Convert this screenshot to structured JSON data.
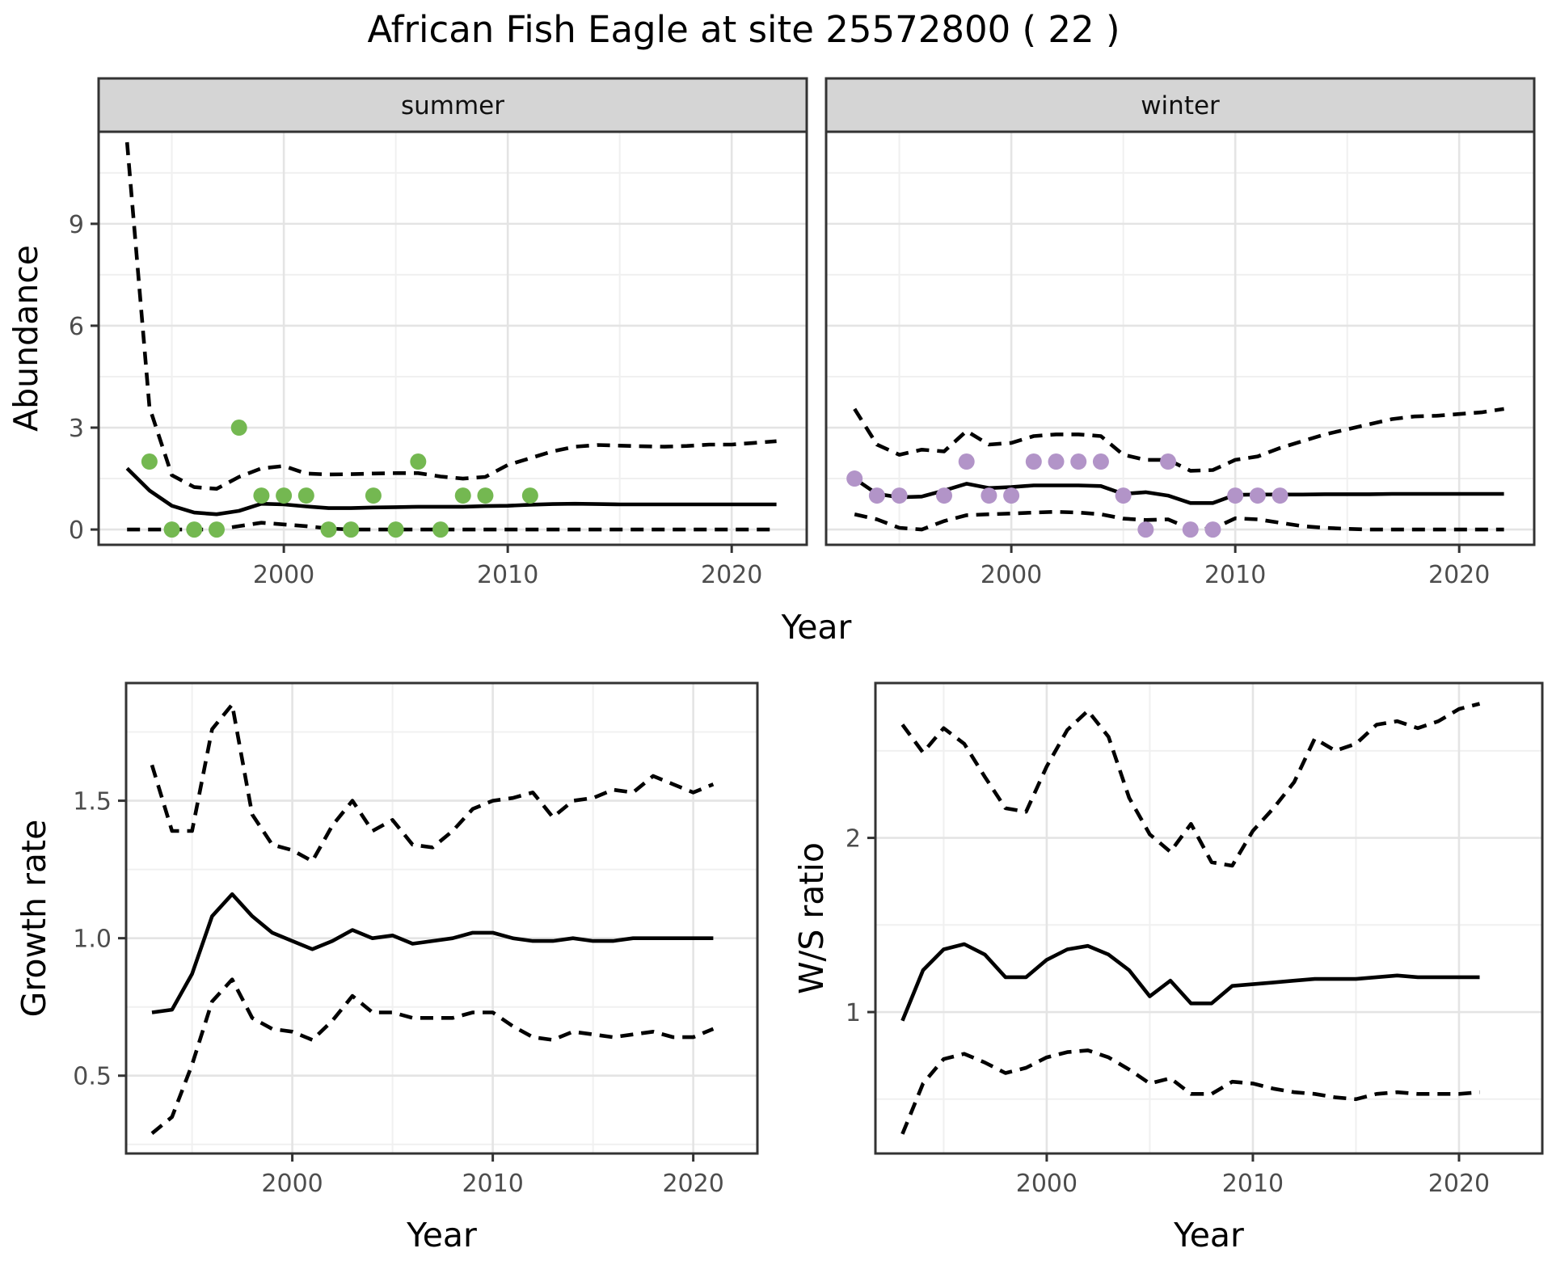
{
  "title": "African Fish Eagle at site 25572800 ( 22 )",
  "colors": {
    "summer_points": "#74B851",
    "winter_points": "#B294C8",
    "line": "#000000",
    "grid_major": "#E4E4E4",
    "grid_minor": "#F0F0F0",
    "panel_border": "#333333",
    "strip_background": "#D5D5D5",
    "strip_text": "#111111",
    "tick_text": "#4D4D4D",
    "axis_title_text": "#000000",
    "background": "#FFFFFF"
  },
  "axis_titles": {
    "abundance": "Abundance",
    "year_top": "Year",
    "growth": "Growth rate",
    "year_growth": "Year",
    "ws": "W/S ratio",
    "year_ws": "Year"
  },
  "chart_data": [
    {
      "panel": "summer",
      "type": "line",
      "strip": "summer",
      "xlabel": "Year",
      "ylabel": "Abundance",
      "grid": true,
      "legend": "none",
      "x_range": [
        1991.73,
        2023.35
      ],
      "y_range": [
        -0.45,
        11.71
      ],
      "x_ticks": [
        2000,
        2010,
        2020
      ],
      "x_tick_labels": [
        "2000",
        "2010",
        "2020"
      ],
      "x_minor": [
        1995,
        2005,
        2015
      ],
      "y_ticks": [
        0,
        3,
        6,
        9
      ],
      "y_tick_labels": [
        "0",
        "3",
        "6",
        "9"
      ],
      "y_minor": [
        1.5,
        4.5,
        7.5,
        10.5
      ],
      "show_y_labels": true,
      "years": [
        1993,
        1994,
        1995,
        1996,
        1997,
        1998,
        1999,
        2000,
        2001,
        2002,
        2003,
        2004,
        2005,
        2006,
        2007,
        2008,
        2009,
        2010,
        2011,
        2012,
        2013,
        2014,
        2015,
        2016,
        2017,
        2018,
        2019,
        2020,
        2021,
        2022
      ],
      "series": [
        {
          "name": "upper_ci",
          "style": "dashed",
          "values": [
            11.4,
            3.6,
            1.6,
            1.25,
            1.2,
            1.55,
            1.8,
            1.87,
            1.65,
            1.62,
            1.63,
            1.65,
            1.66,
            1.66,
            1.56,
            1.5,
            1.55,
            1.9,
            2.1,
            2.3,
            2.44,
            2.49,
            2.47,
            2.45,
            2.44,
            2.46,
            2.5,
            2.5,
            2.55,
            2.6
          ]
        },
        {
          "name": "median",
          "style": "solid",
          "values": [
            1.8,
            1.15,
            0.7,
            0.5,
            0.45,
            0.55,
            0.76,
            0.74,
            0.68,
            0.63,
            0.63,
            0.65,
            0.66,
            0.67,
            0.67,
            0.67,
            0.69,
            0.7,
            0.73,
            0.75,
            0.76,
            0.75,
            0.74,
            0.74,
            0.74,
            0.74,
            0.74,
            0.74,
            0.74,
            0.74
          ]
        },
        {
          "name": "lower_ci",
          "style": "dashed",
          "values": [
            0,
            0,
            0,
            0,
            0,
            0.1,
            0.2,
            0.15,
            0.1,
            0.03,
            0,
            0,
            0,
            0,
            0,
            0,
            0,
            0,
            0,
            0,
            0,
            0,
            0,
            0,
            0,
            0,
            0,
            0,
            0,
            0
          ]
        }
      ],
      "points": {
        "name": "observed_counts",
        "color": "#74B851",
        "data": [
          [
            1994,
            2
          ],
          [
            1995,
            0
          ],
          [
            1996,
            0
          ],
          [
            1997,
            0
          ],
          [
            1998,
            3
          ],
          [
            1999,
            1
          ],
          [
            2000,
            1
          ],
          [
            2001,
            1
          ],
          [
            2002,
            0
          ],
          [
            2003,
            0
          ],
          [
            2004,
            1
          ],
          [
            2005,
            0
          ],
          [
            2006,
            2
          ],
          [
            2007,
            0
          ],
          [
            2008,
            1
          ],
          [
            2009,
            1
          ],
          [
            2011,
            1
          ]
        ]
      }
    },
    {
      "panel": "winter",
      "type": "line",
      "strip": "winter",
      "xlabel": "Year",
      "ylabel": "Abundance",
      "grid": true,
      "legend": "none",
      "x_range": [
        1991.73,
        2023.35
      ],
      "y_range": [
        -0.45,
        11.71
      ],
      "x_ticks": [
        2000,
        2010,
        2020
      ],
      "x_tick_labels": [
        "2000",
        "2010",
        "2020"
      ],
      "x_minor": [
        1995,
        2005,
        2015
      ],
      "y_ticks": [
        0,
        3,
        6,
        9
      ],
      "y_tick_labels": [
        "0",
        "3",
        "6",
        "9"
      ],
      "y_minor": [
        1.5,
        4.5,
        7.5,
        10.5
      ],
      "show_y_labels": false,
      "years": [
        1993,
        1994,
        1995,
        1996,
        1997,
        1998,
        1999,
        2000,
        2001,
        2002,
        2003,
        2004,
        2005,
        2006,
        2007,
        2008,
        2009,
        2010,
        2011,
        2012,
        2013,
        2014,
        2015,
        2016,
        2017,
        2018,
        2019,
        2020,
        2021,
        2022
      ],
      "series": [
        {
          "name": "upper_ci",
          "style": "dashed",
          "values": [
            3.55,
            2.5,
            2.2,
            2.35,
            2.3,
            2.9,
            2.5,
            2.55,
            2.75,
            2.8,
            2.8,
            2.75,
            2.2,
            2.05,
            2.05,
            1.73,
            1.75,
            2.05,
            2.15,
            2.4,
            2.6,
            2.8,
            2.95,
            3.1,
            3.25,
            3.33,
            3.35,
            3.4,
            3.45,
            3.55
          ]
        },
        {
          "name": "median",
          "style": "solid",
          "values": [
            1.5,
            1.05,
            0.95,
            0.97,
            1.15,
            1.35,
            1.22,
            1.25,
            1.3,
            1.3,
            1.3,
            1.28,
            1.05,
            1.1,
            1.0,
            0.78,
            0.78,
            1.02,
            1.03,
            1.03,
            1.03,
            1.04,
            1.04,
            1.04,
            1.05,
            1.05,
            1.05,
            1.05,
            1.05,
            1.05
          ]
        },
        {
          "name": "lower_ci",
          "style": "dashed",
          "values": [
            0.45,
            0.3,
            0.05,
            0,
            0.25,
            0.42,
            0.45,
            0.47,
            0.5,
            0.52,
            0.5,
            0.45,
            0.32,
            0.28,
            0.3,
            0.02,
            0.02,
            0.33,
            0.3,
            0.2,
            0.1,
            0.05,
            0.02,
            0,
            0,
            0,
            0,
            0,
            0,
            0
          ]
        }
      ],
      "points": {
        "name": "observed_counts",
        "color": "#B294C8",
        "data": [
          [
            1993,
            1.5
          ],
          [
            1994,
            1
          ],
          [
            1995,
            1
          ],
          [
            1997,
            1
          ],
          [
            1998,
            2
          ],
          [
            1999,
            1
          ],
          [
            2000,
            1
          ],
          [
            2001,
            2
          ],
          [
            2002,
            2
          ],
          [
            2003,
            2
          ],
          [
            2004,
            2
          ],
          [
            2005,
            1
          ],
          [
            2006,
            0
          ],
          [
            2007,
            2
          ],
          [
            2008,
            0
          ],
          [
            2009,
            0
          ],
          [
            2010,
            1
          ],
          [
            2011,
            1
          ],
          [
            2012,
            1
          ]
        ]
      }
    },
    {
      "panel": "growth",
      "type": "line",
      "strip": null,
      "xlabel": "Year",
      "ylabel": "Growth rate",
      "grid": true,
      "legend": "none",
      "x_range": [
        1991.71,
        2023.2
      ],
      "y_range": [
        0.217,
        1.928
      ],
      "x_ticks": [
        2000,
        2010,
        2020
      ],
      "x_tick_labels": [
        "2000",
        "2010",
        "2020"
      ],
      "x_minor": [
        1995,
        2005,
        2015
      ],
      "y_ticks": [
        0.5,
        1.0,
        1.5
      ],
      "y_tick_labels": [
        "0.5",
        "1.0",
        "1.5"
      ],
      "y_minor": [
        0.25,
        0.75,
        1.25,
        1.75
      ],
      "show_y_labels": true,
      "years": [
        1993,
        1994,
        1995,
        1996,
        1997,
        1998,
        1999,
        2000,
        2001,
        2002,
        2003,
        2004,
        2005,
        2006,
        2007,
        2008,
        2009,
        2010,
        2011,
        2012,
        2013,
        2014,
        2015,
        2016,
        2017,
        2018,
        2019,
        2020,
        2021
      ],
      "series": [
        {
          "name": "upper_ci",
          "style": "dashed",
          "values": [
            1.63,
            1.39,
            1.39,
            1.76,
            1.85,
            1.45,
            1.34,
            1.32,
            1.28,
            1.41,
            1.5,
            1.39,
            1.43,
            1.34,
            1.33,
            1.39,
            1.47,
            1.5,
            1.51,
            1.53,
            1.44,
            1.5,
            1.51,
            1.54,
            1.53,
            1.59,
            1.56,
            1.53,
            1.56
          ]
        },
        {
          "name": "median",
          "style": "solid",
          "values": [
            0.73,
            0.74,
            0.87,
            1.08,
            1.16,
            1.08,
            1.02,
            0.99,
            0.96,
            0.99,
            1.03,
            1.0,
            1.01,
            0.98,
            0.99,
            1.0,
            1.02,
            1.02,
            1.0,
            0.99,
            0.99,
            1.0,
            0.99,
            0.99,
            1.0,
            1.0,
            1.0,
            1.0,
            1.0
          ]
        },
        {
          "name": "lower_ci",
          "style": "dashed",
          "values": [
            0.29,
            0.35,
            0.54,
            0.77,
            0.85,
            0.71,
            0.67,
            0.66,
            0.63,
            0.7,
            0.79,
            0.73,
            0.73,
            0.71,
            0.71,
            0.71,
            0.73,
            0.73,
            0.68,
            0.64,
            0.63,
            0.66,
            0.65,
            0.64,
            0.65,
            0.66,
            0.64,
            0.64,
            0.67
          ]
        }
      ],
      "points": null
    },
    {
      "panel": "ws_ratio",
      "type": "line",
      "strip": null,
      "xlabel": "Year",
      "ylabel": "W/S ratio",
      "grid": true,
      "legend": "none",
      "x_range": [
        1991.69,
        2024.04
      ],
      "y_range": [
        0.188,
        2.889
      ],
      "x_ticks": [
        2000,
        2010,
        2020
      ],
      "x_tick_labels": [
        "2000",
        "2010",
        "2020"
      ],
      "x_minor": [
        1995,
        2005,
        2015
      ],
      "y_ticks": [
        1,
        2
      ],
      "y_tick_labels": [
        "1",
        "2"
      ],
      "y_minor": [
        0.5,
        1.5,
        2.5
      ],
      "show_y_labels": true,
      "years": [
        1993,
        1994,
        1995,
        1996,
        1997,
        1998,
        1999,
        2000,
        2001,
        2002,
        2003,
        2004,
        2005,
        2006,
        2007,
        2008,
        2009,
        2010,
        2011,
        2012,
        2013,
        2014,
        2015,
        2016,
        2017,
        2018,
        2019,
        2020,
        2021
      ],
      "series": [
        {
          "name": "upper_ci",
          "style": "dashed",
          "values": [
            2.65,
            2.49,
            2.63,
            2.54,
            2.35,
            2.17,
            2.15,
            2.41,
            2.62,
            2.73,
            2.58,
            2.23,
            2.02,
            1.92,
            2.08,
            1.86,
            1.84,
            2.04,
            2.17,
            2.32,
            2.57,
            2.5,
            2.54,
            2.65,
            2.67,
            2.63,
            2.67,
            2.74,
            2.77
          ]
        },
        {
          "name": "median",
          "style": "solid",
          "values": [
            0.95,
            1.24,
            1.36,
            1.39,
            1.33,
            1.2,
            1.2,
            1.3,
            1.36,
            1.38,
            1.33,
            1.24,
            1.09,
            1.18,
            1.05,
            1.05,
            1.15,
            1.16,
            1.17,
            1.18,
            1.19,
            1.19,
            1.19,
            1.2,
            1.21,
            1.2,
            1.2,
            1.2,
            1.2
          ]
        },
        {
          "name": "lower_ci",
          "style": "dashed",
          "values": [
            0.3,
            0.59,
            0.73,
            0.76,
            0.71,
            0.65,
            0.68,
            0.74,
            0.77,
            0.78,
            0.74,
            0.67,
            0.59,
            0.62,
            0.53,
            0.53,
            0.6,
            0.59,
            0.56,
            0.54,
            0.53,
            0.51,
            0.5,
            0.53,
            0.54,
            0.53,
            0.53,
            0.53,
            0.54
          ]
        }
      ],
      "points": null
    }
  ]
}
